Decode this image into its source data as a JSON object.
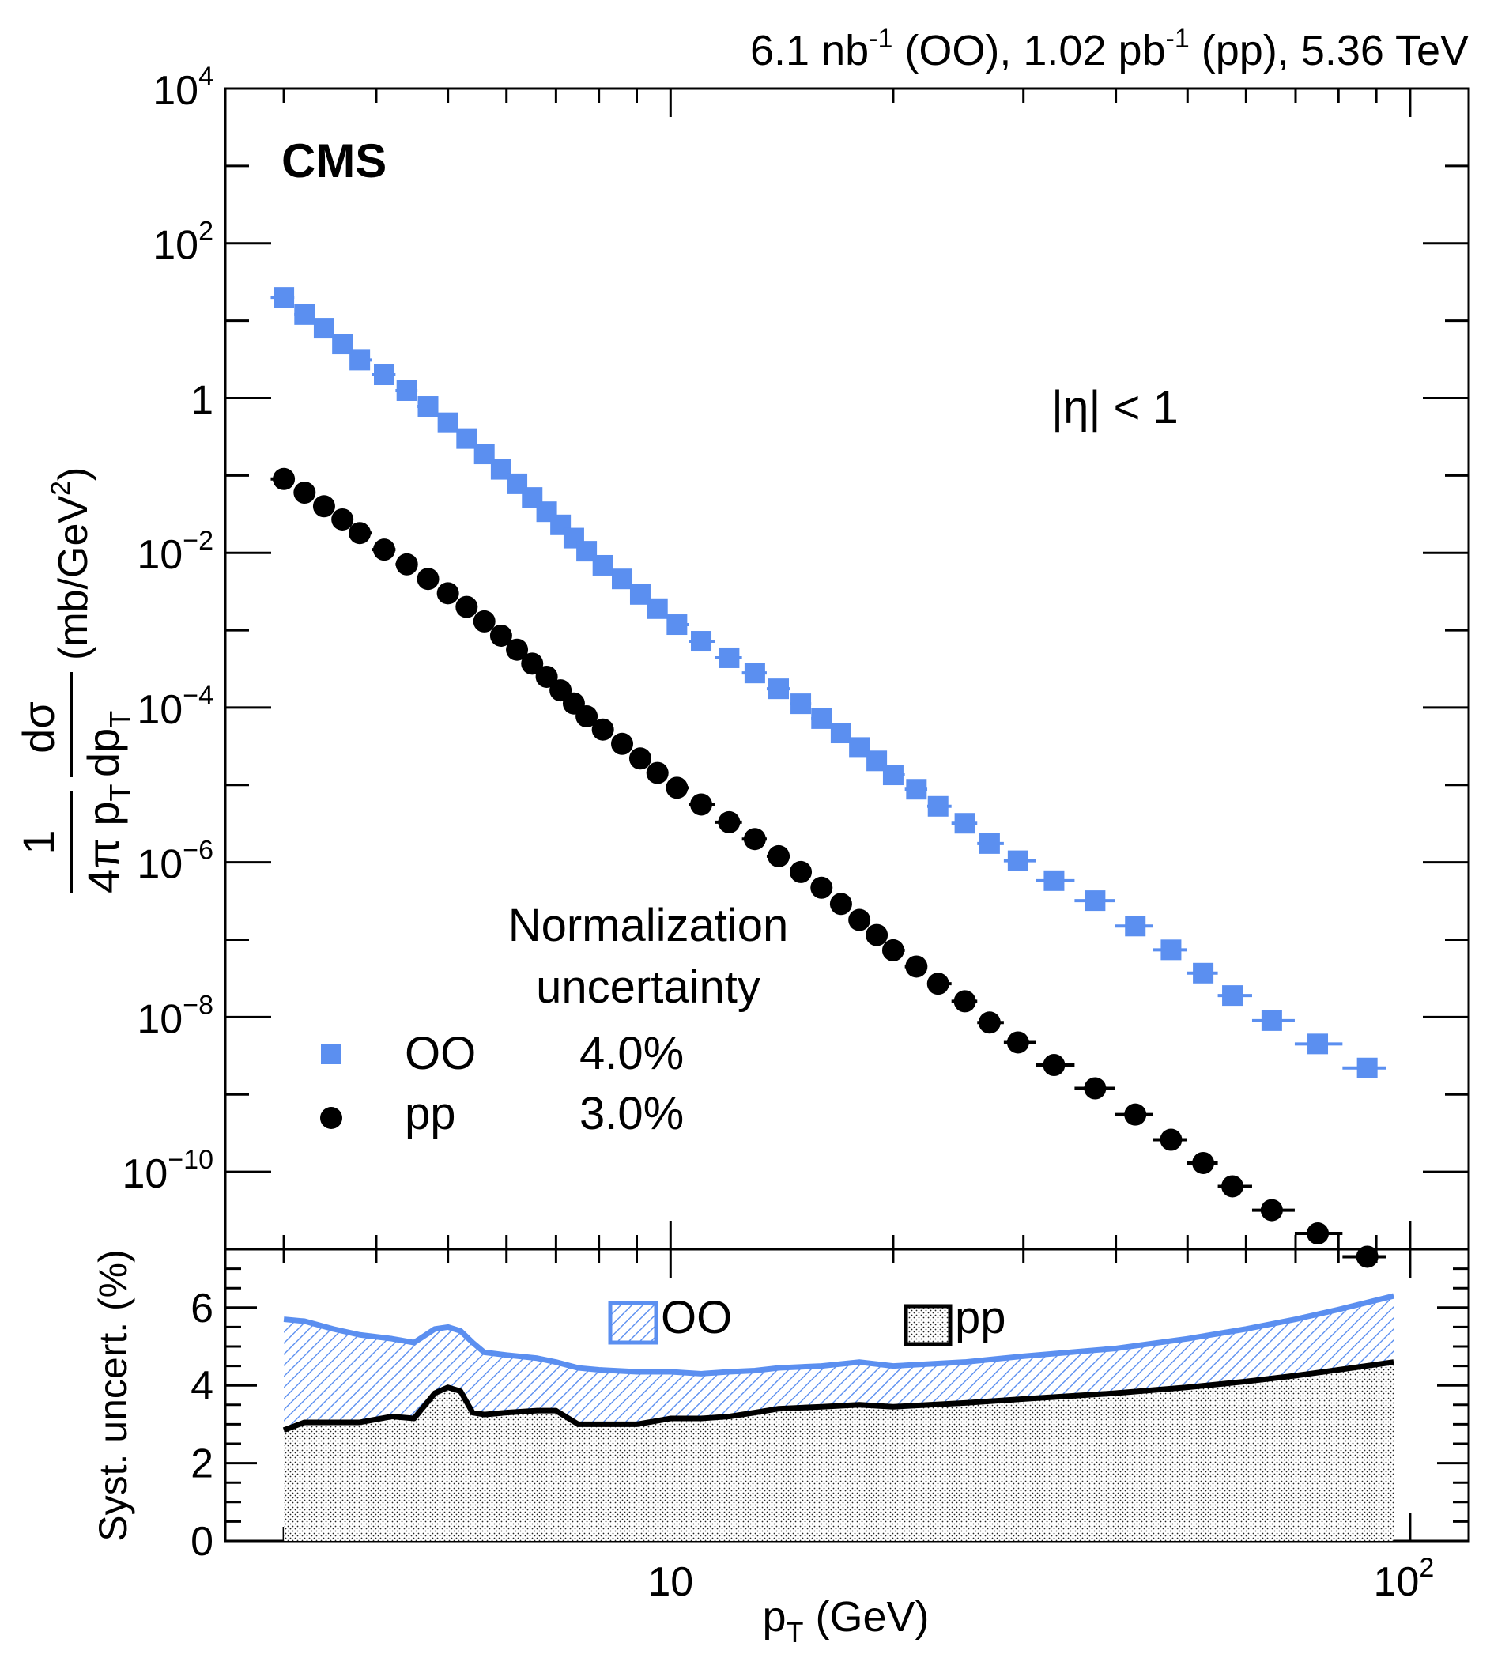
{
  "header": {
    "lumi_parts": [
      "6.1 nb",
      "-1",
      " (OO), 1.02 pb",
      "-1",
      " (pp), 5.36 TeV"
    ],
    "experiment": "CMS",
    "eta_cut": "|η| < 1"
  },
  "legend": {
    "title_line1": "Normalization",
    "title_line2": "uncertainty",
    "entries": [
      {
        "name": "OO",
        "value": "4.0%"
      },
      {
        "name": "pp",
        "value": "3.0%"
      }
    ]
  },
  "upper_axis": {
    "ylabel_numerator": "1",
    "ylabel_denominator": "4π p",
    "ylabel_sub": "T",
    "ylabel_dsigma": "dσ",
    "ylabel_dpt": "dp",
    "ylabel_units_pre": "(mb/GeV",
    "ylabel_units_exp": "2",
    "ylabel_units_post": ")",
    "yticks": [
      {
        "base": "10",
        "exp": "4",
        "value": 10000
      },
      {
        "base": "10",
        "exp": "2",
        "value": 100
      },
      {
        "base": "1",
        "exp": "",
        "value": 1
      },
      {
        "base": "10",
        "exp": "−2",
        "value": 0.01
      },
      {
        "base": "10",
        "exp": "−4",
        "value": 0.0001
      },
      {
        "base": "10",
        "exp": "−6",
        "value": 1e-06
      },
      {
        "base": "10",
        "exp": "−8",
        "value": 1e-08
      },
      {
        "base": "10",
        "exp": "−10",
        "value": 1e-10
      }
    ]
  },
  "lower_axis": {
    "ylabel": "Syst. uncert. (%)",
    "yticks": [
      "0",
      "2",
      "4",
      "6"
    ],
    "legend": [
      {
        "name": "OO"
      },
      {
        "name": "pp"
      }
    ]
  },
  "x_axis": {
    "xlabel_main": "p",
    "xlabel_sub": "T",
    "xlabel_units": " (GeV)",
    "xticks": [
      {
        "base": "10",
        "exp": "",
        "value": 10
      },
      {
        "base": "10",
        "exp": "2",
        "value": 100
      }
    ]
  },
  "colors": {
    "oo": "#5b8ff0",
    "pp": "#000000"
  },
  "chart_data": [
    {
      "type": "scatter",
      "title": "",
      "xlabel": "p_T (GeV)",
      "ylabel": "1/(4π p_T) dσ/dp_T (mb/GeV^2)",
      "xscale": "log",
      "yscale": "log",
      "xlim": [
        2.5,
        120
      ],
      "ylim": [
        1e-11,
        10000
      ],
      "series": [
        {
          "name": "OO",
          "marker": "square",
          "x": [
            3.0,
            3.2,
            3.4,
            3.6,
            3.8,
            4.1,
            4.4,
            4.7,
            5.0,
            5.3,
            5.6,
            5.9,
            6.2,
            6.5,
            6.8,
            7.1,
            7.4,
            7.7,
            8.1,
            8.6,
            9.1,
            9.6,
            10.2,
            11.0,
            12.0,
            13.0,
            14.0,
            15.0,
            16.0,
            17.0,
            18.0,
            19.0,
            20.0,
            21.5,
            23.0,
            25.0,
            27.0,
            29.5,
            33.0,
            37.5,
            42.5,
            47.5,
            52.5,
            57.5,
            65.0,
            75.0,
            87.5
          ],
          "y": [
            20,
            12,
            8,
            5,
            3.1,
            2.0,
            1.25,
            0.78,
            0.48,
            0.3,
            0.19,
            0.12,
            0.078,
            0.052,
            0.034,
            0.023,
            0.0155,
            0.0105,
            0.0069,
            0.0046,
            0.0029,
            0.0019,
            0.00118,
            0.00072,
            0.00044,
            0.00028,
            0.000175,
            0.000112,
            7.2e-05,
            4.7e-05,
            3.05e-05,
            2.05e-05,
            1.35e-05,
            8.8e-06,
            5.3e-06,
            3.2e-06,
            1.75e-06,
            1.05e-06,
            5.8e-07,
            3.2e-07,
            1.5e-07,
            7.4e-08,
            3.7e-08,
            1.9e-08,
            9e-09,
            4.5e-09,
            2.2e-09
          ]
        },
        {
          "name": "pp",
          "marker": "circle",
          "x": [
            3.0,
            3.2,
            3.4,
            3.6,
            3.8,
            4.1,
            4.4,
            4.7,
            5.0,
            5.3,
            5.6,
            5.9,
            6.2,
            6.5,
            6.8,
            7.1,
            7.4,
            7.7,
            8.1,
            8.6,
            9.1,
            9.6,
            10.2,
            11.0,
            12.0,
            13.0,
            14.0,
            15.0,
            16.0,
            17.0,
            18.0,
            19.0,
            20.0,
            21.5,
            23.0,
            25.0,
            27.0,
            29.5,
            33.0,
            37.5,
            42.5,
            47.5,
            52.5,
            57.5,
            65.0,
            75.0,
            87.5
          ],
          "y": [
            0.09,
            0.06,
            0.04,
            0.027,
            0.018,
            0.011,
            0.0071,
            0.0046,
            0.003,
            0.002,
            0.0013,
            0.00085,
            0.00056,
            0.00037,
            0.00025,
            0.000167,
            0.000113,
            7.7e-05,
            5.2e-05,
            3.4e-05,
            2.2e-05,
            1.43e-05,
            9.2e-06,
            5.6e-06,
            3.3e-06,
            2e-06,
            1.2e-06,
            7.5e-07,
            4.7e-07,
            2.9e-07,
            1.8e-07,
            1.15e-07,
            7.3e-08,
            4.5e-08,
            2.7e-08,
            1.6e-08,
            8.5e-09,
            4.7e-09,
            2.4e-09,
            1.2e-09,
            5.5e-10,
            2.6e-10,
            1.3e-10,
            6.5e-11,
            3.2e-11,
            1.6e-11,
            8e-12
          ]
        }
      ]
    },
    {
      "type": "area",
      "title": "",
      "xlabel": "p_T (GeV)",
      "ylabel": "Syst. uncert. (%)",
      "xscale": "log",
      "xlim": [
        2.5,
        120
      ],
      "ylim": [
        0,
        7.5
      ],
      "series": [
        {
          "name": "OO",
          "fill": "hatched",
          "x": [
            3.0,
            3.2,
            3.5,
            3.8,
            4.2,
            4.5,
            4.8,
            5.0,
            5.2,
            5.4,
            5.6,
            6.0,
            6.6,
            7.0,
            7.5,
            8.0,
            9.0,
            10.0,
            11.0,
            12.0,
            13.0,
            14.0,
            16.0,
            18.0,
            20.0,
            25.0,
            30.0,
            40.0,
            50.0,
            60.0,
            70.0,
            80.0,
            95.0
          ],
          "y": [
            5.7,
            5.65,
            5.45,
            5.3,
            5.2,
            5.1,
            5.45,
            5.5,
            5.4,
            5.1,
            4.85,
            4.78,
            4.7,
            4.6,
            4.45,
            4.4,
            4.35,
            4.35,
            4.3,
            4.35,
            4.38,
            4.45,
            4.5,
            4.6,
            4.5,
            4.6,
            4.75,
            4.95,
            5.2,
            5.45,
            5.7,
            5.95,
            6.3
          ]
        },
        {
          "name": "pp",
          "fill": "dotted",
          "x": [
            3.0,
            3.2,
            3.5,
            3.8,
            4.2,
            4.5,
            4.8,
            5.0,
            5.2,
            5.4,
            5.6,
            6.0,
            6.6,
            7.0,
            7.5,
            8.0,
            9.0,
            10.0,
            11.0,
            12.0,
            13.0,
            14.0,
            16.0,
            18.0,
            20.0,
            25.0,
            30.0,
            40.0,
            50.0,
            60.0,
            70.0,
            80.0,
            95.0
          ],
          "y": [
            2.85,
            3.05,
            3.05,
            3.05,
            3.2,
            3.15,
            3.8,
            3.95,
            3.85,
            3.3,
            3.25,
            3.3,
            3.35,
            3.35,
            3.0,
            3.0,
            3.0,
            3.15,
            3.15,
            3.2,
            3.3,
            3.4,
            3.45,
            3.5,
            3.45,
            3.55,
            3.65,
            3.8,
            3.95,
            4.1,
            4.25,
            4.4,
            4.6
          ]
        }
      ]
    }
  ]
}
